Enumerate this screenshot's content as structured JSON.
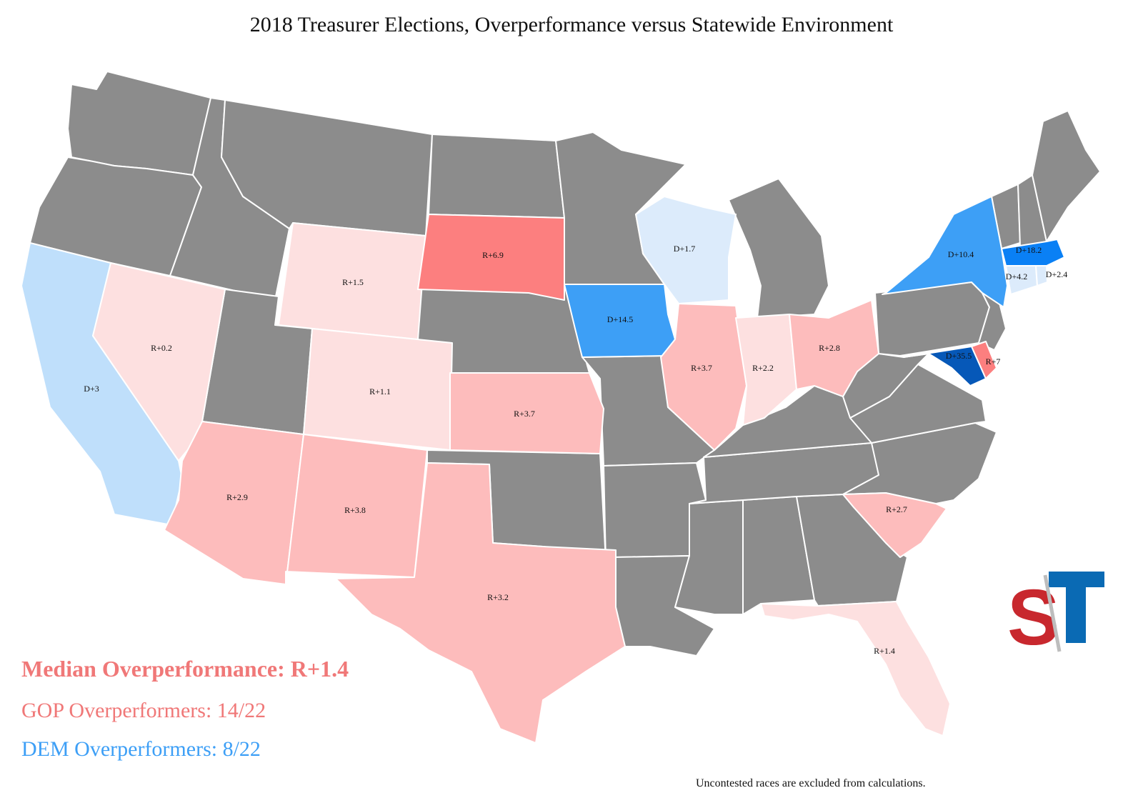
{
  "title": "2018 Treasurer Elections, Overperformance versus Statewide Environment",
  "colors": {
    "no_race": "#8c8c8c",
    "r_light": "#fde0e0",
    "r_mid": "#fdbcbc",
    "r_strong": "#fc7f7f",
    "d_light": "#dcebfb",
    "d_mid": "#bfdffb",
    "d_strong": "#3d9ff6",
    "d_stronger": "#0a80f5",
    "d_strongest": "#0658b8",
    "median_text": "#f07878",
    "gop_text": "#f07878",
    "dem_text": "#3d9ff6",
    "logo_red": "#c8282e",
    "logo_blue": "#0a6ab4"
  },
  "states": [
    {
      "id": "CA",
      "label": "D+3",
      "fill": "d_mid"
    },
    {
      "id": "NV",
      "label": "R+0.2",
      "fill": "r_light"
    },
    {
      "id": "WY",
      "label": "R+1.5",
      "fill": "r_light"
    },
    {
      "id": "CO",
      "label": "R+1.1",
      "fill": "r_light"
    },
    {
      "id": "SD",
      "label": "R+6.9",
      "fill": "r_strong"
    },
    {
      "id": "KS",
      "label": "R+3.7",
      "fill": "r_mid"
    },
    {
      "id": "AZ",
      "label": "R+2.9",
      "fill": "r_mid"
    },
    {
      "id": "NM",
      "label": "R+3.8",
      "fill": "r_mid"
    },
    {
      "id": "TX",
      "label": "R+3.2",
      "fill": "r_mid"
    },
    {
      "id": "IA",
      "label": "D+14.5",
      "fill": "d_strong"
    },
    {
      "id": "WI",
      "label": "D+1.7",
      "fill": "d_light"
    },
    {
      "id": "IL",
      "label": "R+3.7",
      "fill": "r_mid"
    },
    {
      "id": "IN",
      "label": "R+2.2",
      "fill": "r_light"
    },
    {
      "id": "OH",
      "label": "R+2.8",
      "fill": "r_mid"
    },
    {
      "id": "NY",
      "label": "D+10.4",
      "fill": "d_strong"
    },
    {
      "id": "MA",
      "label": "D+18.2",
      "fill": "d_stronger"
    },
    {
      "id": "CT",
      "label": "D+4.2",
      "fill": "d_light"
    },
    {
      "id": "RI",
      "label": "D+2.4",
      "fill": "d_light"
    },
    {
      "id": "MD",
      "label": "D+35.5",
      "fill": "d_strongest"
    },
    {
      "id": "DE",
      "label": "R+7",
      "fill": "r_strong"
    },
    {
      "id": "SC",
      "label": "R+2.7",
      "fill": "r_mid"
    },
    {
      "id": "FL",
      "label": "R+1.4",
      "fill": "r_light"
    }
  ],
  "stats": {
    "median": "Median Overperformance: R+1.4",
    "gop": "GOP Overperformers: 14/22",
    "dem": "DEM Overperformers: 8/22"
  },
  "footnote": "Uncontested races are excluded from calculations.",
  "logo": {
    "letters": "ST"
  }
}
